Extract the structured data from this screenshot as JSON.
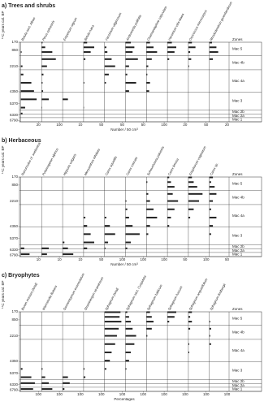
{
  "chart_data": [
    {
      "type": "strat-bar",
      "title": "a) Trees and shrubs",
      "y_label": "¹⁴C years cal. BP",
      "x_label": "Number / 50 cm³",
      "zones_label": "Zones",
      "ylim": [
        170,
        6900
      ],
      "yticks": [
        170,
        850,
        2210,
        4350,
        5370,
        6330,
        6790
      ],
      "y": [
        200,
        600,
        1000,
        1600,
        2200,
        2900,
        3600,
        4300,
        5000,
        5700,
        6200,
        6700
      ],
      "zones": [
        {
          "name": "Mac 5",
          "bottom": 1300
        },
        {
          "name": "Mac 4b",
          "bottom": 2500
        },
        {
          "name": "Mac 4a",
          "bottom": 4400
        },
        {
          "name": "Mac 3",
          "bottom": 5900
        },
        {
          "name": "Mac 2b",
          "bottom": 6250
        },
        {
          "name": "Mac 2a",
          "bottom": 6550
        },
        {
          "name": "Mac 1",
          "bottom": 6900
        }
      ],
      "series": [
        {
          "name": "Betula sect. Albae",
          "color": "#222222",
          "xlim": [
            0,
            20
          ],
          "xticks": [
            20
          ],
          "values": [
            0,
            0,
            1,
            0,
            2,
            3,
            12,
            15,
            18,
            5,
            2,
            0
          ]
        },
        {
          "name": "Pinus sylvestris",
          "color": "#222222",
          "xlim": [
            0,
            100
          ],
          "xticks": [
            100
          ],
          "values": [
            5,
            20,
            60,
            80,
            30,
            10,
            5,
            8,
            40,
            2,
            0,
            0
          ]
        },
        {
          "name": "Empetrum nigrum",
          "color": "#222222",
          "xlim": [
            0,
            10
          ],
          "xticks": [
            10
          ],
          "values": [
            0,
            0,
            0,
            0,
            0,
            0,
            0,
            0,
            3,
            0,
            0,
            0
          ]
        },
        {
          "name": "Betula nana",
          "color": "#222222",
          "xlim": [
            0,
            50
          ],
          "xticks": [
            50
          ],
          "values": [
            10,
            30,
            20,
            5,
            0,
            0,
            2,
            0,
            0,
            1,
            0,
            0
          ]
        },
        {
          "name": "Vaccinium uliginosum",
          "color": "#222222",
          "xlim": [
            0,
            50
          ],
          "xticks": [
            50
          ],
          "values": [
            0,
            5,
            8,
            20,
            30,
            12,
            4,
            0,
            0,
            0,
            0,
            0
          ]
        },
        {
          "name": "Andromeda polifolia",
          "color": "#222222",
          "xlim": [
            0,
            50
          ],
          "xticks": [
            50
          ],
          "values": [
            15,
            25,
            20,
            35,
            10,
            5,
            30,
            10,
            0,
            0,
            0,
            0
          ]
        },
        {
          "name": "Chamaedaphne calyculata",
          "color": "#222222",
          "xlim": [
            0,
            100
          ],
          "xticks": [
            100
          ],
          "values": [
            20,
            40,
            60,
            30,
            10,
            5,
            20,
            15,
            0,
            0,
            0,
            0
          ]
        },
        {
          "name": "Vaccinium vitis-idaea",
          "color": "#222222",
          "xlim": [
            0,
            20
          ],
          "xticks": [
            20
          ],
          "values": [
            5,
            10,
            8,
            2,
            0,
            0,
            0,
            0,
            0,
            0,
            0,
            0
          ]
        },
        {
          "name": "Oxycoccus microcarpus",
          "color": "#222222",
          "xlim": [
            0,
            50
          ],
          "xticks": [
            50
          ],
          "values": [
            10,
            20,
            5,
            8,
            2,
            0,
            0,
            0,
            0,
            0,
            0,
            0
          ]
        },
        {
          "name": "Rhododendron groenlandicum",
          "color": "#222222",
          "xlim": [
            0,
            20
          ],
          "xticks": [
            20
          ],
          "values": [
            3,
            8,
            10,
            4,
            0,
            0,
            0,
            0,
            0,
            0,
            0,
            0
          ]
        }
      ]
    },
    {
      "type": "strat-bar",
      "title": "b) Herbaceous",
      "y_label": "¹⁴C years cal. BP",
      "x_label": "Number / 50 cm³",
      "zones_label": "Zones",
      "ylim": [
        170,
        6900
      ],
      "yticks": [
        170,
        850,
        2210,
        4350,
        5370,
        6330,
        6790
      ],
      "y": [
        200,
        600,
        1000,
        1600,
        2200,
        2900,
        3600,
        4300,
        5000,
        5700,
        6200,
        6700
      ],
      "zones": [
        {
          "name": "Mac 5",
          "bottom": 1300
        },
        {
          "name": "Mac 4b",
          "bottom": 2500
        },
        {
          "name": "Mac 4a",
          "bottom": 4400
        },
        {
          "name": "Mac 3",
          "bottom": 5900
        },
        {
          "name": "Mac 2b",
          "bottom": 6250
        },
        {
          "name": "Mac 2a",
          "bottom": 6550
        },
        {
          "name": "Mac 1",
          "bottom": 6900
        }
      ],
      "series": [
        {
          "name": "Ranunculus cf. sceleratus",
          "color": "#222222",
          "xlim": [
            0,
            10
          ],
          "xticks": [
            10
          ],
          "values": [
            0,
            0,
            0,
            0,
            0,
            0,
            0,
            0,
            0,
            0,
            2,
            5
          ]
        },
        {
          "name": "Potamogeton alpinus",
          "color": "#222222",
          "xlim": [
            0,
            10
          ],
          "xticks": [
            10
          ],
          "values": [
            0,
            0,
            0,
            0,
            0,
            0,
            0,
            0,
            0,
            0,
            4,
            3
          ]
        },
        {
          "name": "Hippuris vulgaris",
          "color": "#222222",
          "xlim": [
            0,
            10
          ],
          "xticks": [
            10
          ],
          "values": [
            0,
            0,
            0,
            0,
            0,
            0,
            0,
            0,
            0,
            1,
            3,
            6
          ]
        },
        {
          "name": "Menyanthes trifoliata",
          "color": "#222222",
          "xlim": [
            0,
            50
          ],
          "xticks": [
            50
          ],
          "values": [
            0,
            0,
            0,
            0,
            0,
            0,
            5,
            10,
            20,
            30,
            10,
            0
          ]
        },
        {
          "name": "Carex aquatilis",
          "color": "#222222",
          "xlim": [
            0,
            100
          ],
          "xticks": [
            100
          ],
          "values": [
            0,
            0,
            0,
            0,
            0,
            0,
            10,
            30,
            60,
            20,
            5,
            0
          ]
        },
        {
          "name": "Carex rostrata",
          "color": "#222222",
          "xlim": [
            0,
            100
          ],
          "xticks": [
            100
          ],
          "values": [
            0,
            0,
            0,
            0,
            5,
            10,
            20,
            40,
            80,
            30,
            10,
            0
          ]
        },
        {
          "name": "Scheuchzeria palustris",
          "color": "#222222",
          "xlim": [
            0,
            100
          ],
          "xticks": [
            100
          ],
          "values": [
            0,
            5,
            0,
            10,
            20,
            40,
            60,
            20,
            10,
            0,
            0,
            0
          ]
        },
        {
          "name": "Carex limosa",
          "color": "#222222",
          "xlim": [
            0,
            50
          ],
          "xticks": [
            50
          ],
          "values": [
            5,
            10,
            20,
            15,
            30,
            20,
            10,
            5,
            0,
            0,
            0,
            0
          ]
        },
        {
          "name": "Eriophorum vaginatum",
          "color": "#222222",
          "xlim": [
            0,
            100
          ],
          "xticks": [
            100
          ],
          "values": [
            20,
            30,
            50,
            80,
            60,
            30,
            10,
            0,
            0,
            0,
            0,
            0
          ]
        },
        {
          "name": "Carex sp.",
          "color": "#222222",
          "xlim": [
            0,
            50
          ],
          "xticks": [
            50
          ],
          "values": [
            10,
            5,
            15,
            20,
            10,
            5,
            20,
            10,
            5,
            0,
            0,
            0
          ]
        }
      ]
    },
    {
      "type": "strat-bar",
      "title": "c) Bryophytes",
      "y_label": "¹⁴C years cal. BP",
      "x_label": "Percentages",
      "zones_label": "Zones",
      "ylim": [
        170,
        6900
      ],
      "yticks": [
        170,
        850,
        2210,
        4350,
        5370,
        6330,
        6790
      ],
      "y": [
        200,
        600,
        1000,
        1600,
        2200,
        2900,
        3600,
        4300,
        5000,
        5700,
        6200,
        6700
      ],
      "zones": [
        {
          "name": "Mac 5",
          "bottom": 1300
        },
        {
          "name": "Mac 4b",
          "bottom": 2500
        },
        {
          "name": "Mac 4a",
          "bottom": 4400
        },
        {
          "name": "Mac 3",
          "bottom": 5900
        },
        {
          "name": "Mac 2b",
          "bottom": 6250
        },
        {
          "name": "Mac 2a",
          "bottom": 6550
        },
        {
          "name": "Mac 1",
          "bottom": 6900
        }
      ],
      "series": [
        {
          "name": "Brown mosses (total)",
          "color": "#222222",
          "xlim": [
            0,
            100
          ],
          "xticks": [
            100
          ],
          "values": [
            0,
            0,
            0,
            0,
            0,
            0,
            0,
            0,
            10,
            60,
            80,
            70
          ]
        },
        {
          "name": "Warnstorfia fluitans",
          "color": "#222222",
          "xlim": [
            0,
            100
          ],
          "xticks": [
            100
          ],
          "values": [
            0,
            0,
            0,
            0,
            0,
            0,
            0,
            0,
            5,
            20,
            40,
            60
          ]
        },
        {
          "name": "Sarmentypnum exannulatum",
          "color": "#222222",
          "xlim": [
            0,
            100
          ],
          "xticks": [
            100
          ],
          "values": [
            0,
            0,
            0,
            0,
            0,
            0,
            0,
            0,
            0,
            30,
            40,
            10
          ]
        },
        {
          "name": "Straminergon stramineum",
          "color": "#222222",
          "xlim": [
            0,
            100
          ],
          "xticks": [
            100
          ],
          "values": [
            0,
            0,
            0,
            0,
            0,
            0,
            0,
            0,
            5,
            10,
            0,
            0
          ]
        },
        {
          "name": "Sphagnum (total)",
          "color": "#222222",
          "xlim": [
            0,
            100
          ],
          "xticks": [
            100
          ],
          "values": [
            90,
            85,
            95,
            80,
            70,
            60,
            40,
            30,
            10,
            0,
            0,
            0
          ]
        },
        {
          "name": "Sphagnum sect. Cuspidata",
          "color": "#222222",
          "xlim": [
            0,
            100
          ],
          "xticks": [
            100
          ],
          "values": [
            10,
            20,
            30,
            40,
            60,
            50,
            30,
            20,
            5,
            0,
            0,
            0
          ]
        },
        {
          "name": "Sphagnum balticum",
          "color": "#222222",
          "xlim": [
            0,
            100
          ],
          "xticks": [
            100
          ],
          "values": [
            20,
            30,
            40,
            30,
            5,
            0,
            0,
            0,
            0,
            0,
            0,
            0
          ]
        },
        {
          "name": "Sphagnum fuscum",
          "color": "#222222",
          "xlim": [
            0,
            100
          ],
          "xticks": [
            100
          ],
          "values": [
            50,
            40,
            10,
            0,
            0,
            0,
            0,
            0,
            0,
            0,
            0,
            0
          ]
        },
        {
          "name": "Sphagnum angustifolium",
          "color": "#222222",
          "xlim": [
            0,
            100
          ],
          "xticks": [
            100
          ],
          "values": [
            20,
            10,
            20,
            10,
            0,
            5,
            5,
            0,
            0,
            0,
            0,
            0
          ]
        },
        {
          "name": "Sphagnum lindbergii",
          "color": "#222222",
          "xlim": [
            0,
            100
          ],
          "xticks": [
            100
          ],
          "values": [
            0,
            0,
            5,
            10,
            5,
            10,
            0,
            0,
            0,
            0,
            0,
            0
          ]
        }
      ]
    }
  ]
}
